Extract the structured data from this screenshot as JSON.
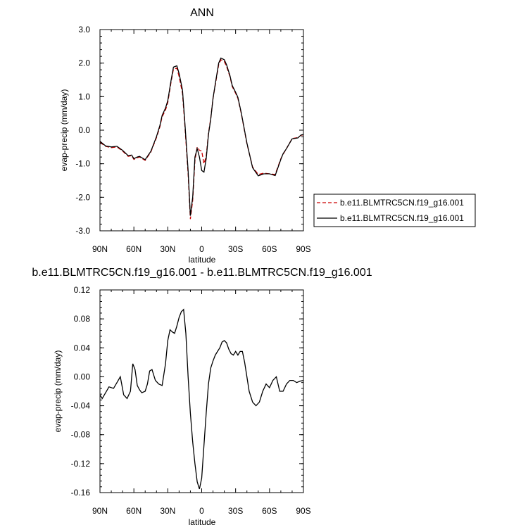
{
  "chart_data": [
    {
      "type": "line",
      "title": "ANN",
      "xlabel": "latitude",
      "ylabel": "evap-precip (mm/day)",
      "xlim": [
        90,
        -90
      ],
      "ylim": [
        -3.0,
        3.0
      ],
      "x_ticks": [
        90,
        60,
        30,
        0,
        -30,
        -60,
        -90
      ],
      "x_tick_labels": [
        "90N",
        "60N",
        "30N",
        "0",
        "30S",
        "60S",
        "90S"
      ],
      "y_ticks": [
        3.0,
        2.0,
        1.0,
        0.0,
        -1.0,
        -2.0,
        -3.0
      ],
      "y_tick_labels": [
        "3.0",
        "2.0",
        "1.0",
        "0.0",
        "-1.0",
        "-2.0",
        "-3.0"
      ],
      "legend_position": "right-middle",
      "x": [
        90,
        85,
        80,
        75,
        70,
        65,
        62,
        60,
        57,
        55,
        50,
        45,
        40,
        37,
        35,
        32,
        30,
        27,
        25,
        22,
        20,
        17,
        15,
        12,
        10,
        8,
        6,
        4,
        2,
        0,
        -2,
        -4,
        -6,
        -8,
        -10,
        -12,
        -15,
        -17,
        -20,
        -22,
        -25,
        -27,
        -30,
        -32,
        -35,
        -40,
        -45,
        -50,
        -55,
        -60,
        -65,
        -70,
        -72,
        -75,
        -80,
        -85,
        -88,
        -90
      ],
      "series": [
        {
          "name": "b.e11.BLMTRC5CN.f19_g16.001",
          "color": "#cc0000",
          "dash": true,
          "values": [
            -0.36,
            -0.48,
            -0.52,
            -0.5,
            -0.62,
            -0.78,
            -0.76,
            -0.87,
            -0.82,
            -0.8,
            -0.9,
            -0.65,
            -0.22,
            0.1,
            0.4,
            0.6,
            0.82,
            1.45,
            1.82,
            1.85,
            1.6,
            1.1,
            0.2,
            -1.3,
            -2.65,
            -2.1,
            -0.9,
            -0.5,
            -0.6,
            -0.62,
            -1.0,
            -0.78,
            -0.1,
            0.35,
            0.95,
            1.35,
            1.95,
            2.1,
            2.05,
            1.9,
            1.6,
            1.3,
            1.1,
            0.95,
            0.5,
            -0.4,
            -1.1,
            -1.32,
            -1.28,
            -1.3,
            -1.32,
            -0.85,
            -0.72,
            -0.55,
            -0.25,
            -0.22,
            -0.15,
            -0.14
          ]
        },
        {
          "name": "b.e11.BLMTRC5CN.f19_g16.001",
          "color": "#000000",
          "dash": false,
          "values": [
            -0.33,
            -0.47,
            -0.5,
            -0.48,
            -0.6,
            -0.76,
            -0.74,
            -0.85,
            -0.8,
            -0.78,
            -0.88,
            -0.63,
            -0.19,
            0.14,
            0.44,
            0.66,
            0.88,
            1.5,
            1.88,
            1.92,
            1.69,
            1.2,
            0.28,
            -1.2,
            -2.55,
            -2.0,
            -0.8,
            -0.55,
            -0.8,
            -1.2,
            -1.25,
            -0.85,
            -0.13,
            0.32,
            0.95,
            1.38,
            2.0,
            2.15,
            2.1,
            1.95,
            1.63,
            1.33,
            1.13,
            0.98,
            0.52,
            -0.38,
            -1.12,
            -1.36,
            -1.3,
            -1.3,
            -1.35,
            -0.87,
            -0.7,
            -0.55,
            -0.26,
            -0.23,
            -0.14,
            -0.13
          ]
        }
      ]
    },
    {
      "type": "line",
      "title": "b.e11.BLMTRC5CN.f19_g16.001 - b.e11.BLMTRC5CN.f19_g16.001",
      "xlabel": "latitude",
      "ylabel": "evap-precip (mm/day)",
      "xlim": [
        90,
        -90
      ],
      "ylim": [
        -0.16,
        0.12
      ],
      "x_ticks": [
        90,
        60,
        30,
        0,
        -30,
        -60,
        -90
      ],
      "x_tick_labels": [
        "90N",
        "60N",
        "30N",
        "0",
        "30S",
        "60S",
        "90S"
      ],
      "y_ticks": [
        0.12,
        0.08,
        0.04,
        0.0,
        -0.04,
        -0.08,
        -0.12,
        -0.16
      ],
      "y_tick_labels": [
        "0.12",
        "0.08",
        "0.04",
        "0.00",
        "-0.04",
        "-0.08",
        "-0.12",
        "-0.16"
      ],
      "x": [
        90,
        88,
        85,
        82,
        78,
        75,
        72,
        69,
        66,
        63,
        61,
        59,
        57,
        55,
        53,
        50,
        48,
        46,
        44,
        41,
        38,
        35,
        32,
        30,
        28,
        26,
        24,
        22,
        20,
        18,
        16,
        14,
        12,
        10,
        8,
        6,
        4,
        2,
        0,
        -2,
        -4,
        -6,
        -8,
        -10,
        -12,
        -14,
        -16,
        -18,
        -20,
        -22,
        -24,
        -26,
        -28,
        -30,
        -32,
        -34,
        -36,
        -38,
        -40,
        -42,
        -45,
        -48,
        -51,
        -54,
        -57,
        -60,
        -63,
        -66,
        -69,
        -72,
        -75,
        -78,
        -81,
        -84,
        -87,
        -90
      ],
      "series": [
        {
          "name": "",
          "color": "#000000",
          "dash": false,
          "values": [
            -0.025,
            -0.03,
            -0.022,
            -0.014,
            -0.016,
            -0.008,
            0.0,
            -0.025,
            -0.03,
            -0.02,
            0.018,
            0.01,
            -0.012,
            -0.018,
            -0.022,
            -0.02,
            -0.01,
            0.008,
            0.01,
            -0.005,
            -0.01,
            -0.012,
            0.018,
            0.05,
            0.065,
            0.062,
            0.06,
            0.07,
            0.082,
            0.09,
            0.093,
            0.06,
            0.0,
            -0.05,
            -0.09,
            -0.12,
            -0.145,
            -0.155,
            -0.14,
            -0.095,
            -0.05,
            -0.01,
            0.012,
            0.022,
            0.03,
            0.035,
            0.04,
            0.048,
            0.05,
            0.047,
            0.038,
            0.032,
            0.03,
            0.035,
            0.03,
            0.035,
            0.035,
            0.02,
            0.0,
            -0.02,
            -0.035,
            -0.04,
            -0.035,
            -0.02,
            -0.01,
            -0.015,
            -0.005,
            0.0,
            -0.02,
            -0.02,
            -0.01,
            -0.005,
            -0.005,
            -0.008,
            -0.006,
            -0.005
          ]
        }
      ]
    }
  ]
}
